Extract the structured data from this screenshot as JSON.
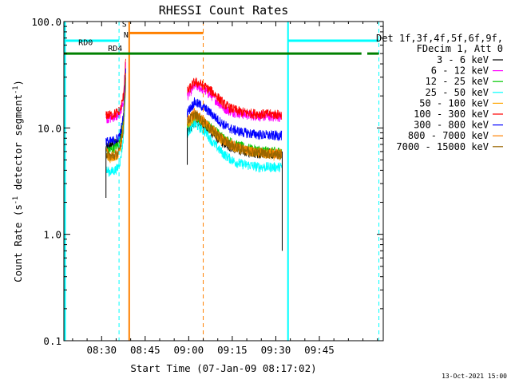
{
  "chart_data": {
    "type": "line",
    "title": "RHESSI Count Rates",
    "xlabel": "Start Time (07-Jan-09 08:17:02)",
    "ylabel_main": "Count Rate (s",
    "ylabel_sup1": "-1",
    "ylabel_mid": " detector segment",
    "ylabel_sup2": "-1",
    "ylabel_end": ")",
    "x_start": "08:17:02",
    "x_ticks": [
      "08:30",
      "08:45",
      "09:00",
      "09:15",
      "09:30",
      "09:45"
    ],
    "x_tick_minutes": [
      30,
      45,
      60,
      75,
      90,
      105
    ],
    "xlim_minutes": [
      17.0,
      127.0
    ],
    "y_log": true,
    "ylim": [
      0.1,
      100.0
    ],
    "y_ticks": [
      "0.1",
      "1.0",
      "10.0",
      "100.0"
    ],
    "y_tick_values": [
      0.1,
      1,
      10,
      100
    ],
    "legend_placement": "right",
    "legend_header": [
      "Det 1f,3f,4f,5f,6f,9f,",
      "FDecim 1, Att 0"
    ],
    "series": [
      {
        "name": "3 - 6 keV",
        "color": "#000000",
        "seg1": [
          [
            31.5,
            6.5
          ],
          [
            32.5,
            6.8
          ],
          [
            33.5,
            7.0
          ],
          [
            34.5,
            7.2
          ],
          [
            35.5,
            7.5
          ],
          [
            36.5,
            8.5
          ],
          [
            37.5,
            12.0
          ],
          [
            38.3,
            30.0
          ]
        ],
        "seg2": [
          [
            59.5,
            9.0
          ],
          [
            62.0,
            11.5
          ],
          [
            64.0,
            11.0
          ],
          [
            66.0,
            10.0
          ],
          [
            68.0,
            9.0
          ],
          [
            70.0,
            8.0
          ],
          [
            72.0,
            7.2
          ],
          [
            74.0,
            6.7
          ],
          [
            76.0,
            6.4
          ],
          [
            78.0,
            6.2
          ],
          [
            80.0,
            6.0
          ],
          [
            82.0,
            5.9
          ],
          [
            84.0,
            5.8
          ],
          [
            86.0,
            5.8
          ],
          [
            88.0,
            5.8
          ],
          [
            90.0,
            5.7
          ],
          [
            92.0,
            5.7
          ]
        ]
      },
      {
        "name": "6 - 12 keV",
        "color": "#ff00ff",
        "seg1": [
          [
            31.5,
            12.5
          ],
          [
            32.5,
            12.3
          ],
          [
            33.5,
            12.5
          ],
          [
            34.5,
            12.8
          ],
          [
            35.5,
            13.0
          ],
          [
            36.5,
            14.0
          ],
          [
            37.5,
            18.0
          ],
          [
            38.3,
            40.0
          ]
        ],
        "seg2": [
          [
            59.5,
            20.0
          ],
          [
            62.0,
            25.0
          ],
          [
            64.0,
            24.0
          ],
          [
            66.0,
            22.0
          ],
          [
            68.0,
            20.0
          ],
          [
            70.0,
            17.5
          ],
          [
            72.0,
            15.5
          ],
          [
            74.0,
            14.5
          ],
          [
            76.0,
            14.0
          ],
          [
            78.0,
            13.6
          ],
          [
            80.0,
            13.3
          ],
          [
            82.0,
            13.1
          ],
          [
            84.0,
            13.0
          ],
          [
            86.0,
            12.9
          ],
          [
            88.0,
            12.8
          ],
          [
            90.0,
            12.8
          ],
          [
            92.0,
            12.7
          ]
        ]
      },
      {
        "name": "12 - 25 keV",
        "color": "#00c800",
        "seg1": [
          [
            31.5,
            6.0
          ],
          [
            32.5,
            6.1
          ],
          [
            33.5,
            6.3
          ],
          [
            34.5,
            6.5
          ],
          [
            35.5,
            6.8
          ],
          [
            36.5,
            7.8
          ],
          [
            37.5,
            12.0
          ],
          [
            38.3,
            35.0
          ]
        ],
        "seg2": [
          [
            59.5,
            10.0
          ],
          [
            62.0,
            12.5
          ],
          [
            64.0,
            12.0
          ],
          [
            66.0,
            11.0
          ],
          [
            68.0,
            10.0
          ],
          [
            70.0,
            9.0
          ],
          [
            72.0,
            8.0
          ],
          [
            74.0,
            7.5
          ],
          [
            76.0,
            7.0
          ],
          [
            78.0,
            6.7
          ],
          [
            80.0,
            6.5
          ],
          [
            82.0,
            6.3
          ],
          [
            84.0,
            6.2
          ],
          [
            86.0,
            6.1
          ],
          [
            88.0,
            6.0
          ],
          [
            90.0,
            6.0
          ],
          [
            92.0,
            6.0
          ]
        ]
      },
      {
        "name": "25 - 50 keV",
        "color": "#00ffff",
        "seg1": [
          [
            31.5,
            4.0
          ],
          [
            32.5,
            3.9
          ],
          [
            33.5,
            3.9
          ],
          [
            34.5,
            4.0
          ],
          [
            35.5,
            4.2
          ],
          [
            36.5,
            5.0
          ],
          [
            37.5,
            8.0
          ],
          [
            38.3,
            25.0
          ]
        ],
        "seg2": [
          [
            59.5,
            9.0
          ],
          [
            62.0,
            11.0
          ],
          [
            64.0,
            10.0
          ],
          [
            66.0,
            9.0
          ],
          [
            68.0,
            7.5
          ],
          [
            70.0,
            6.5
          ],
          [
            72.0,
            5.7
          ],
          [
            74.0,
            5.2
          ],
          [
            76.0,
            4.8
          ],
          [
            78.0,
            4.6
          ],
          [
            80.0,
            4.5
          ],
          [
            82.0,
            4.4
          ],
          [
            84.0,
            4.3
          ],
          [
            86.0,
            4.3
          ],
          [
            88.0,
            4.3
          ],
          [
            90.0,
            4.3
          ],
          [
            92.0,
            4.3
          ]
        ]
      },
      {
        "name": "50 - 100 keV",
        "color": "#ffa500",
        "seg1": [
          [
            31.5,
            5.5
          ],
          [
            32.5,
            5.2
          ],
          [
            33.5,
            5.3
          ],
          [
            34.5,
            5.4
          ],
          [
            35.5,
            5.6
          ],
          [
            36.5,
            6.5
          ],
          [
            37.5,
            10.0
          ],
          [
            38.3,
            28.0
          ]
        ],
        "seg2": [
          [
            59.5,
            10.5
          ],
          [
            62.0,
            13.0
          ],
          [
            64.0,
            12.0
          ],
          [
            66.0,
            10.8
          ],
          [
            68.0,
            9.5
          ],
          [
            70.0,
            8.3
          ],
          [
            72.0,
            7.5
          ],
          [
            74.0,
            7.0
          ],
          [
            76.0,
            6.6
          ],
          [
            78.0,
            6.3
          ],
          [
            80.0,
            6.1
          ],
          [
            82.0,
            6.0
          ],
          [
            84.0,
            5.8
          ],
          [
            86.0,
            5.7
          ],
          [
            88.0,
            5.6
          ],
          [
            90.0,
            5.5
          ],
          [
            92.0,
            5.5
          ]
        ]
      },
      {
        "name": "100 - 300 keV",
        "color": "#ff0000",
        "seg1": [
          [
            31.5,
            13.5
          ],
          [
            32.5,
            13.2
          ],
          [
            33.5,
            13.3
          ],
          [
            34.5,
            13.6
          ],
          [
            35.5,
            14.0
          ],
          [
            36.5,
            15.0
          ],
          [
            37.5,
            20.0
          ],
          [
            38.3,
            45.0
          ]
        ],
        "seg2": [
          [
            59.5,
            22.0
          ],
          [
            62.0,
            27.0
          ],
          [
            64.0,
            26.0
          ],
          [
            66.0,
            24.0
          ],
          [
            68.0,
            22.0
          ],
          [
            70.0,
            19.5
          ],
          [
            72.0,
            17.0
          ],
          [
            74.0,
            15.5
          ],
          [
            76.0,
            14.8
          ],
          [
            78.0,
            14.2
          ],
          [
            80.0,
            13.9
          ],
          [
            82.0,
            13.7
          ],
          [
            84.0,
            13.6
          ],
          [
            86.0,
            13.5
          ],
          [
            88.0,
            13.5
          ],
          [
            90.0,
            13.4
          ],
          [
            92.0,
            13.4
          ]
        ]
      },
      {
        "name": "300 - 800 keV",
        "color": "#0000ff",
        "seg1": [
          [
            31.5,
            7.5
          ],
          [
            32.5,
            7.4
          ],
          [
            33.5,
            7.5
          ],
          [
            34.5,
            7.7
          ],
          [
            35.5,
            8.0
          ],
          [
            36.5,
            9.0
          ],
          [
            37.5,
            13.0
          ],
          [
            38.3,
            35.0
          ]
        ],
        "seg2": [
          [
            59.5,
            14.0
          ],
          [
            62.0,
            17.5
          ],
          [
            64.0,
            16.5
          ],
          [
            66.0,
            15.0
          ],
          [
            68.0,
            13.5
          ],
          [
            70.0,
            12.0
          ],
          [
            72.0,
            10.8
          ],
          [
            74.0,
            10.0
          ],
          [
            76.0,
            9.5
          ],
          [
            78.0,
            9.2
          ],
          [
            80.0,
            9.0
          ],
          [
            82.0,
            8.8
          ],
          [
            84.0,
            8.7
          ],
          [
            86.0,
            8.6
          ],
          [
            88.0,
            8.5
          ],
          [
            90.0,
            8.5
          ],
          [
            92.0,
            8.5
          ]
        ]
      },
      {
        "name": "800 - 7000 keV",
        "color": "#ff8000",
        "seg1": [
          [
            31.5,
            6.0
          ],
          [
            32.5,
            5.6
          ],
          [
            33.5,
            5.5
          ],
          [
            34.5,
            5.6
          ],
          [
            35.5,
            5.8
          ],
          [
            36.5,
            6.8
          ],
          [
            37.5,
            10.5
          ],
          [
            38.3,
            30.0
          ]
        ],
        "seg2": [
          [
            59.5,
            12.0
          ],
          [
            62.0,
            14.0
          ],
          [
            64.0,
            12.5
          ],
          [
            66.0,
            11.0
          ],
          [
            68.0,
            9.8
          ],
          [
            70.0,
            8.7
          ],
          [
            72.0,
            7.8
          ],
          [
            74.0,
            7.2
          ],
          [
            76.0,
            6.8
          ],
          [
            78.0,
            6.5
          ],
          [
            80.0,
            6.3
          ],
          [
            82.0,
            6.1
          ],
          [
            84.0,
            6.0
          ],
          [
            86.0,
            5.9
          ],
          [
            88.0,
            5.8
          ],
          [
            90.0,
            5.8
          ],
          [
            92.0,
            5.7
          ]
        ]
      },
      {
        "name": "7000 - 15000 keV",
        "color": "#996600",
        "seg1": [
          [
            31.5,
            5.8
          ],
          [
            32.5,
            5.5
          ],
          [
            33.5,
            5.4
          ],
          [
            34.5,
            5.5
          ],
          [
            35.5,
            5.7
          ],
          [
            36.5,
            6.6
          ],
          [
            37.5,
            10.0
          ],
          [
            38.3,
            28.0
          ]
        ],
        "seg2": [
          [
            59.5,
            11.5
          ],
          [
            62.0,
            13.5
          ],
          [
            64.0,
            12.2
          ],
          [
            66.0,
            10.8
          ],
          [
            68.0,
            9.6
          ],
          [
            70.0,
            8.5
          ],
          [
            72.0,
            7.6
          ],
          [
            74.0,
            7.0
          ],
          [
            76.0,
            6.7
          ],
          [
            78.0,
            6.4
          ],
          [
            80.0,
            6.2
          ],
          [
            82.0,
            6.0
          ],
          [
            84.0,
            5.9
          ],
          [
            86.0,
            5.8
          ],
          [
            88.0,
            5.7
          ],
          [
            90.0,
            5.7
          ],
          [
            92.0,
            5.6
          ]
        ]
      }
    ],
    "state_bars": [
      {
        "label": "",
        "color": "#00ffff",
        "y": 66,
        "x_ranges": [
          [
            17.0,
            36.0
          ],
          [
            94.2,
            125.5
          ]
        ]
      },
      {
        "label": "",
        "color": "#ff8000",
        "y": 78,
        "x_ranges": [
          [
            39.5,
            65.0
          ]
        ]
      },
      {
        "label": "",
        "color": "#008000",
        "y": 50,
        "x_ranges": [
          [
            17.0,
            119.5
          ],
          [
            121.5,
            125.5
          ]
        ]
      }
    ],
    "state_labels": [
      {
        "text": "RD0",
        "color": "#000000",
        "x": 22.0,
        "y": 57
      },
      {
        "text": "RD4",
        "color": "#008000",
        "x": 32.2,
        "y": 50
      },
      {
        "text": "S",
        "color": "#ff8000",
        "x": 37.0,
        "y": 85
      },
      {
        "text": "N",
        "color": "#00c8c8",
        "x": 37.6,
        "y": 67
      }
    ],
    "vlines": [
      {
        "x": 17.4,
        "color": "#00ffff",
        "style": "solid"
      },
      {
        "x": 36.0,
        "color": "#00ffff",
        "style": "dashed"
      },
      {
        "x": 39.5,
        "color": "#ff8000",
        "style": "solid"
      },
      {
        "x": 65.0,
        "color": "#ff8000",
        "style": "dashed"
      },
      {
        "x": 94.2,
        "color": "#00ffff",
        "style": "solid"
      },
      {
        "x": 125.5,
        "color": "#00ffff",
        "style": "dashed"
      }
    ]
  },
  "footer_timestamp": "13-Oct-2021 15:00"
}
